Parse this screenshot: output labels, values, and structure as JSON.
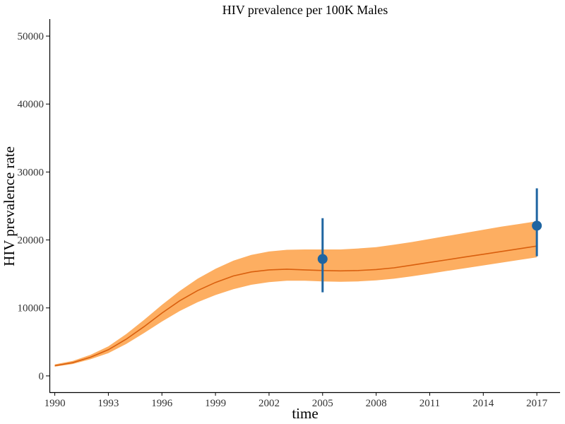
{
  "chart_data": {
    "type": "line",
    "title": "HIV prevalence per 100K Males",
    "xlabel": "time",
    "ylabel": "HIV prevalence rate",
    "xlim": [
      1989.7,
      2018.3
    ],
    "ylim": [
      -2400,
      52500
    ],
    "x_ticks": [
      1990,
      1993,
      1996,
      1999,
      2002,
      2005,
      2008,
      2011,
      2014,
      2017
    ],
    "y_ticks": [
      0,
      10000,
      20000,
      30000,
      40000,
      50000
    ],
    "grid": false,
    "legend": "none",
    "series": [
      {
        "type": "line",
        "color": "#d95f0e",
        "x": [
          1990,
          1991,
          1992,
          1993,
          1994,
          1995,
          1996,
          1997,
          1998,
          1999,
          2000,
          2001,
          2002,
          2003,
          2004,
          2005,
          2006,
          2007,
          2008,
          2009,
          2010,
          2011,
          2012,
          2013,
          2014,
          2015,
          2016,
          2017
        ],
        "values": [
          1500,
          1950,
          2750,
          3850,
          5400,
          7250,
          9250,
          11050,
          12550,
          13750,
          14700,
          15300,
          15600,
          15700,
          15600,
          15500,
          15450,
          15500,
          15650,
          15900,
          16300,
          16700,
          17100,
          17500,
          17900,
          18300,
          18700,
          19100
        ]
      },
      {
        "type": "band",
        "color": "#fdae61",
        "x": [
          1990,
          1991,
          1992,
          1993,
          1994,
          1995,
          1996,
          1997,
          1998,
          1999,
          2000,
          2001,
          2002,
          2003,
          2004,
          2005,
          2006,
          2007,
          2008,
          2009,
          2010,
          2011,
          2012,
          2013,
          2014,
          2015,
          2016,
          2017
        ],
        "lower": [
          1350,
          1750,
          2450,
          3350,
          4700,
          6300,
          8000,
          9550,
          10850,
          11900,
          12750,
          13400,
          13800,
          14000,
          14000,
          13900,
          13850,
          13900,
          14050,
          14300,
          14650,
          15050,
          15450,
          15850,
          16250,
          16650,
          17050,
          17450
        ],
        "upper": [
          1700,
          2200,
          3100,
          4350,
          6150,
          8250,
          10450,
          12500,
          14300,
          15750,
          16950,
          17800,
          18300,
          18550,
          18600,
          18600,
          18600,
          18750,
          18950,
          19300,
          19700,
          20150,
          20600,
          21050,
          21500,
          21950,
          22350,
          22750
        ]
      },
      {
        "type": "errorbar",
        "color": "#1f65a1",
        "points": [
          {
            "x": 2005,
            "y": 17200,
            "ymin": 12300,
            "ymax": 23200
          },
          {
            "x": 2017,
            "y": 22100,
            "ymin": 17600,
            "ymax": 27600
          }
        ]
      }
    ]
  }
}
